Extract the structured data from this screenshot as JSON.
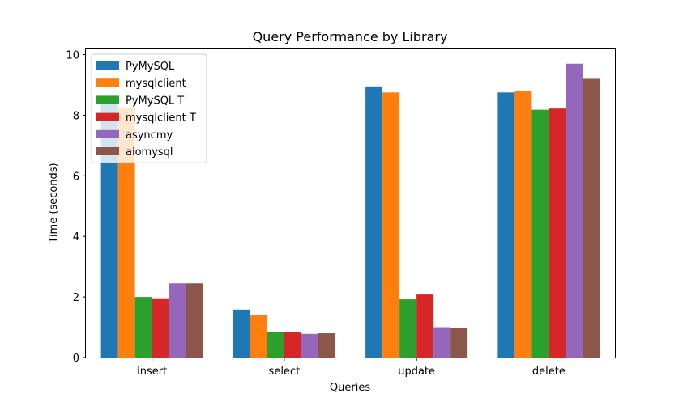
{
  "chart_data": {
    "type": "bar",
    "title": "Query Performance by Library",
    "xlabel": "Queries",
    "ylabel": "Time (seconds)",
    "categories": [
      "insert",
      "select",
      "update",
      "delete"
    ],
    "ylim": [
      0,
      10.2
    ],
    "yticks": [
      0,
      2,
      4,
      6,
      8,
      10
    ],
    "legend_position": "top-left",
    "grid": false,
    "series": [
      {
        "name": "PyMySQL",
        "color": "#1f77b4",
        "values": [
          8.5,
          1.58,
          8.95,
          8.75
        ]
      },
      {
        "name": "mysqlclient",
        "color": "#ff7f0e",
        "values": [
          8.25,
          1.4,
          8.75,
          8.8
        ]
      },
      {
        "name": "PyMySQL T",
        "color": "#2ca02c",
        "values": [
          2.0,
          0.85,
          1.92,
          8.18
        ]
      },
      {
        "name": "mysqlclient T",
        "color": "#d62728",
        "values": [
          1.93,
          0.85,
          2.08,
          8.22
        ]
      },
      {
        "name": "asyncmy",
        "color": "#9467bd",
        "values": [
          2.45,
          0.78,
          1.0,
          9.7
        ]
      },
      {
        "name": "aiomysql",
        "color": "#8c564b",
        "values": [
          2.45,
          0.8,
          0.97,
          9.2
        ]
      }
    ]
  }
}
